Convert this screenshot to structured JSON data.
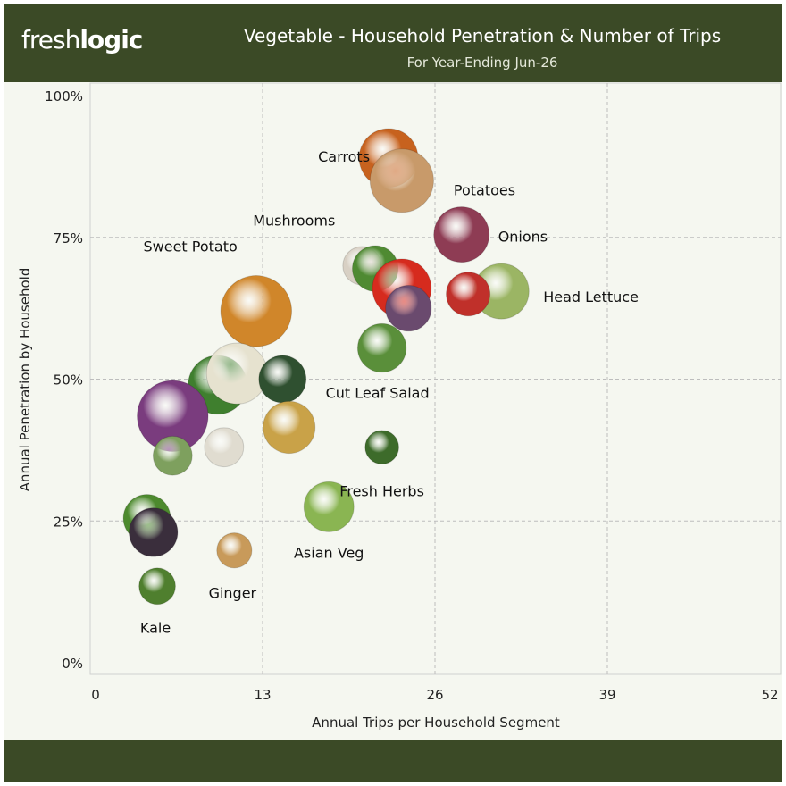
{
  "header": {
    "logo_part1": "fresh",
    "logo_part2": "logic",
    "title": "Vegetable - Household Penetration & Number of Trips",
    "subtitle": "For Year-Ending Jun-26"
  },
  "colors": {
    "header_bg": "#3b4a26",
    "plot_bg": "#f5f7f0",
    "grid": "#bdbdbd"
  },
  "chart_data": {
    "type": "scatter",
    "title": "Vegetable - Household Penetration & Number of Trips",
    "subtitle": "For Year-Ending Jun-26",
    "xlabel": "Annual Trips per Household Segment",
    "ylabel": "Annual Penetration by Household",
    "xlim": [
      0,
      52
    ],
    "ylim": [
      0,
      1
    ],
    "x_ticks": [
      0,
      13,
      26,
      39,
      52
    ],
    "y_ticks": [
      0,
      0.25,
      0.5,
      0.75,
      1.0
    ],
    "y_tick_labels": [
      "0%",
      "25%",
      "50%",
      "75%",
      "100%"
    ],
    "grid": true,
    "points": [
      {
        "label": "Carrots",
        "x": 22.5,
        "y": 0.89,
        "size": 0.55,
        "color": "#c7621e"
      },
      {
        "label": "Potatoes",
        "x": 23.5,
        "y": 0.85,
        "size": 0.62,
        "color": "#c89a6a"
      },
      {
        "label": "Onions",
        "x": 28.0,
        "y": 0.755,
        "size": 0.5,
        "color": "#8e3c54"
      },
      {
        "label": "Head Lettuce",
        "x": 31.0,
        "y": 0.655,
        "size": 0.5,
        "color": "#9bb564"
      },
      {
        "label": "",
        "x": 28.5,
        "y": 0.65,
        "size": 0.33,
        "color": "#c0302a"
      },
      {
        "label": "Mushrooms",
        "x": 20.5,
        "y": 0.7,
        "size": 0.25,
        "color": "#d8d0c4"
      },
      {
        "label": "",
        "x": 21.5,
        "y": 0.695,
        "size": 0.36,
        "color": "#4f8a32"
      },
      {
        "label": "",
        "x": 23.5,
        "y": 0.66,
        "size": 0.55,
        "color": "#d62b1e"
      },
      {
        "label": "",
        "x": 24.0,
        "y": 0.625,
        "size": 0.36,
        "color": "#6a4a6e"
      },
      {
        "label": "Sweet Potato",
        "x": 12.5,
        "y": 0.62,
        "size": 0.73,
        "color": "#d0862a"
      },
      {
        "label": "Cut Leaf Salad",
        "x": 22.0,
        "y": 0.555,
        "size": 0.4,
        "color": "#5a8f3a"
      },
      {
        "label": "",
        "x": 9.5,
        "y": 0.49,
        "size": 0.55,
        "color": "#3f7f2e"
      },
      {
        "label": "",
        "x": 11.0,
        "y": 0.51,
        "size": 0.58,
        "color": "#e6e2cf"
      },
      {
        "label": "",
        "x": 14.5,
        "y": 0.5,
        "size": 0.38,
        "color": "#2f5030"
      },
      {
        "label": "",
        "x": 6.0,
        "y": 0.435,
        "size": 0.73,
        "color": "#7a3c7e"
      },
      {
        "label": "",
        "x": 15.0,
        "y": 0.415,
        "size": 0.45,
        "color": "#c9a248"
      },
      {
        "label": "",
        "x": 10.0,
        "y": 0.38,
        "size": 0.26,
        "color": "#e0dcd0"
      },
      {
        "label": "",
        "x": 6.0,
        "y": 0.365,
        "size": 0.26,
        "color": "#7ea05e"
      },
      {
        "label": "Fresh Herbs",
        "x": 22.0,
        "y": 0.38,
        "size": 0.18,
        "color": "#3d6b2a"
      },
      {
        "label": "Asian Veg",
        "x": 18.0,
        "y": 0.275,
        "size": 0.42,
        "color": "#8ab552"
      },
      {
        "label": "",
        "x": 4.0,
        "y": 0.255,
        "size": 0.38,
        "color": "#4d8a2e"
      },
      {
        "label": "",
        "x": 4.5,
        "y": 0.23,
        "size": 0.4,
        "color": "#3a2e3c"
      },
      {
        "label": "Ginger",
        "x": 10.8,
        "y": 0.198,
        "size": 0.2,
        "color": "#c89a5a"
      },
      {
        "label": "Kale",
        "x": 4.8,
        "y": 0.135,
        "size": 0.22,
        "color": "#4f7f2e"
      }
    ]
  }
}
